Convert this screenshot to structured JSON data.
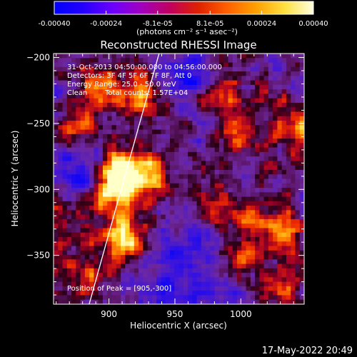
{
  "chart_data": {
    "type": "heatmap",
    "title": "Reconstructed RHESSI Image",
    "xlabel": "Heliocentric X (arcsec)",
    "ylabel": "Heliocentric Y (arcsec)",
    "x_range": [
      858,
      1048
    ],
    "y_range": [
      -387,
      -197
    ],
    "x_ticks": [
      900,
      950,
      1000
    ],
    "y_ticks": [
      -200,
      -250,
      -300,
      -350
    ],
    "colorbar": {
      "range": [
        -0.0004,
        0.0004
      ],
      "tick_values": [
        -0.0004,
        -0.00024,
        -8.1e-05,
        8.1e-05,
        0.00024,
        0.0004
      ],
      "tick_labels": [
        "-0.00040",
        "-0.00024",
        "-8.1e-05",
        "8.1e-05",
        "0.00024",
        "0.00040"
      ],
      "units_label": "(photons cm⁻² s⁻¹ asec⁻²)",
      "colors": [
        "#0000ff",
        "#2400ff",
        "#6a00ff",
        "#a000c0",
        "#c00060",
        "#e02000",
        "#ff6000",
        "#ffa000",
        "#ffe040",
        "#ffffe0"
      ]
    },
    "annotations": {
      "time_range": "31-Oct-2013 04:50:00.000 to 04:56:00.000",
      "detectors": "Detectors: 3F 4F 5F 6F 7F 8F, Att 0",
      "energy_range": "Energy Range: 25.0 - 50.0 keV",
      "clean_label": "Clean",
      "total_counts": "Total counts: 1.57E+04",
      "peak_position": "Position of Peak = [905,-300]"
    },
    "limb_line": {
      "from": [
        885,
        -387
      ],
      "to": [
        938,
        -197
      ]
    },
    "peak": [
      905,
      -300
    ],
    "bright_sources": [
      {
        "x": 905,
        "y": -300,
        "intensity": 1.0
      },
      {
        "x": 910,
        "y": -285,
        "intensity": 0.9
      },
      {
        "x": 910,
        "y": -335,
        "intensity": 0.85
      },
      {
        "x": 925,
        "y": -230,
        "intensity": 0.6
      },
      {
        "x": 895,
        "y": -225,
        "intensity": 0.55
      },
      {
        "x": 935,
        "y": -290,
        "intensity": 0.55
      },
      {
        "x": 1040,
        "y": -250,
        "intensity": 0.65
      },
      {
        "x": 1035,
        "y": -330,
        "intensity": 0.6
      },
      {
        "x": 1000,
        "y": -260,
        "intensity": 0.45
      },
      {
        "x": 985,
        "y": -230,
        "intensity": 0.5
      },
      {
        "x": 1005,
        "y": -320,
        "intensity": 0.45
      },
      {
        "x": 980,
        "y": -310,
        "intensity": 0.45
      },
      {
        "x": 1000,
        "y": -355,
        "intensity": 0.45
      },
      {
        "x": 1025,
        "y": -375,
        "intensity": 0.45
      },
      {
        "x": 955,
        "y": -330,
        "intensity": 0.35
      },
      {
        "x": 875,
        "y": -255,
        "intensity": 0.35
      },
      {
        "x": 870,
        "y": -320,
        "intensity": 0.3
      },
      {
        "x": 880,
        "y": -365,
        "intensity": 0.4
      }
    ],
    "dim_regions": [
      {
        "x": 960,
        "y": -335,
        "intensity": -0.9
      },
      {
        "x": 880,
        "y": -290,
        "intensity": -0.7
      },
      {
        "x": 960,
        "y": -215,
        "intensity": -0.7
      },
      {
        "x": 985,
        "y": -375,
        "intensity": -0.6
      },
      {
        "x": 935,
        "y": -375,
        "intensity": -0.5
      }
    ]
  },
  "timestamp": "17-May-2022 20:49"
}
